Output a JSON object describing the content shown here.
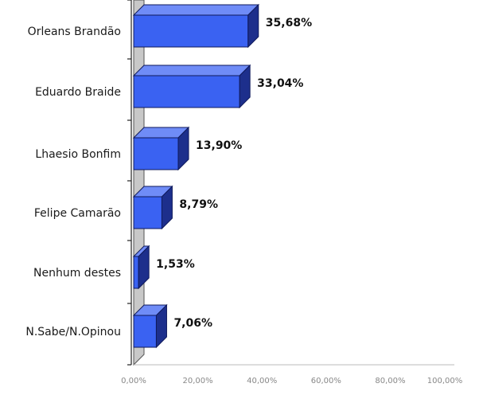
{
  "chart_data": {
    "type": "bar",
    "orientation": "horizontal",
    "three_d": true,
    "categories": [
      "Orleans Brandão",
      "Eduardo Braide",
      "Lhaesio Bonfim",
      "Felipe Camarão",
      "Nenhum destes",
      "N.Sabe/N.Opinou"
    ],
    "values": [
      35.68,
      33.04,
      13.9,
      8.79,
      1.53,
      7.06
    ],
    "value_labels": [
      "35,68%",
      "33,04%",
      "13,90%",
      "8,79%",
      "1,53%",
      "7,06%"
    ],
    "x_ticks": [
      "0,00%",
      "20,00%",
      "40,00%",
      "60,00%",
      "80,00%",
      "100,00%"
    ],
    "xlim": [
      0,
      100
    ],
    "title": "",
    "xlabel": "",
    "ylabel": "",
    "grid": false,
    "legend": "none",
    "colors": {
      "bar_front": "#3a62f2",
      "bar_top": "#6f8cf7",
      "bar_side": "#1d2f8c",
      "bar_edge": "#0f1a5c",
      "wall": "#c8c8c8",
      "axis": "#222222"
    }
  }
}
